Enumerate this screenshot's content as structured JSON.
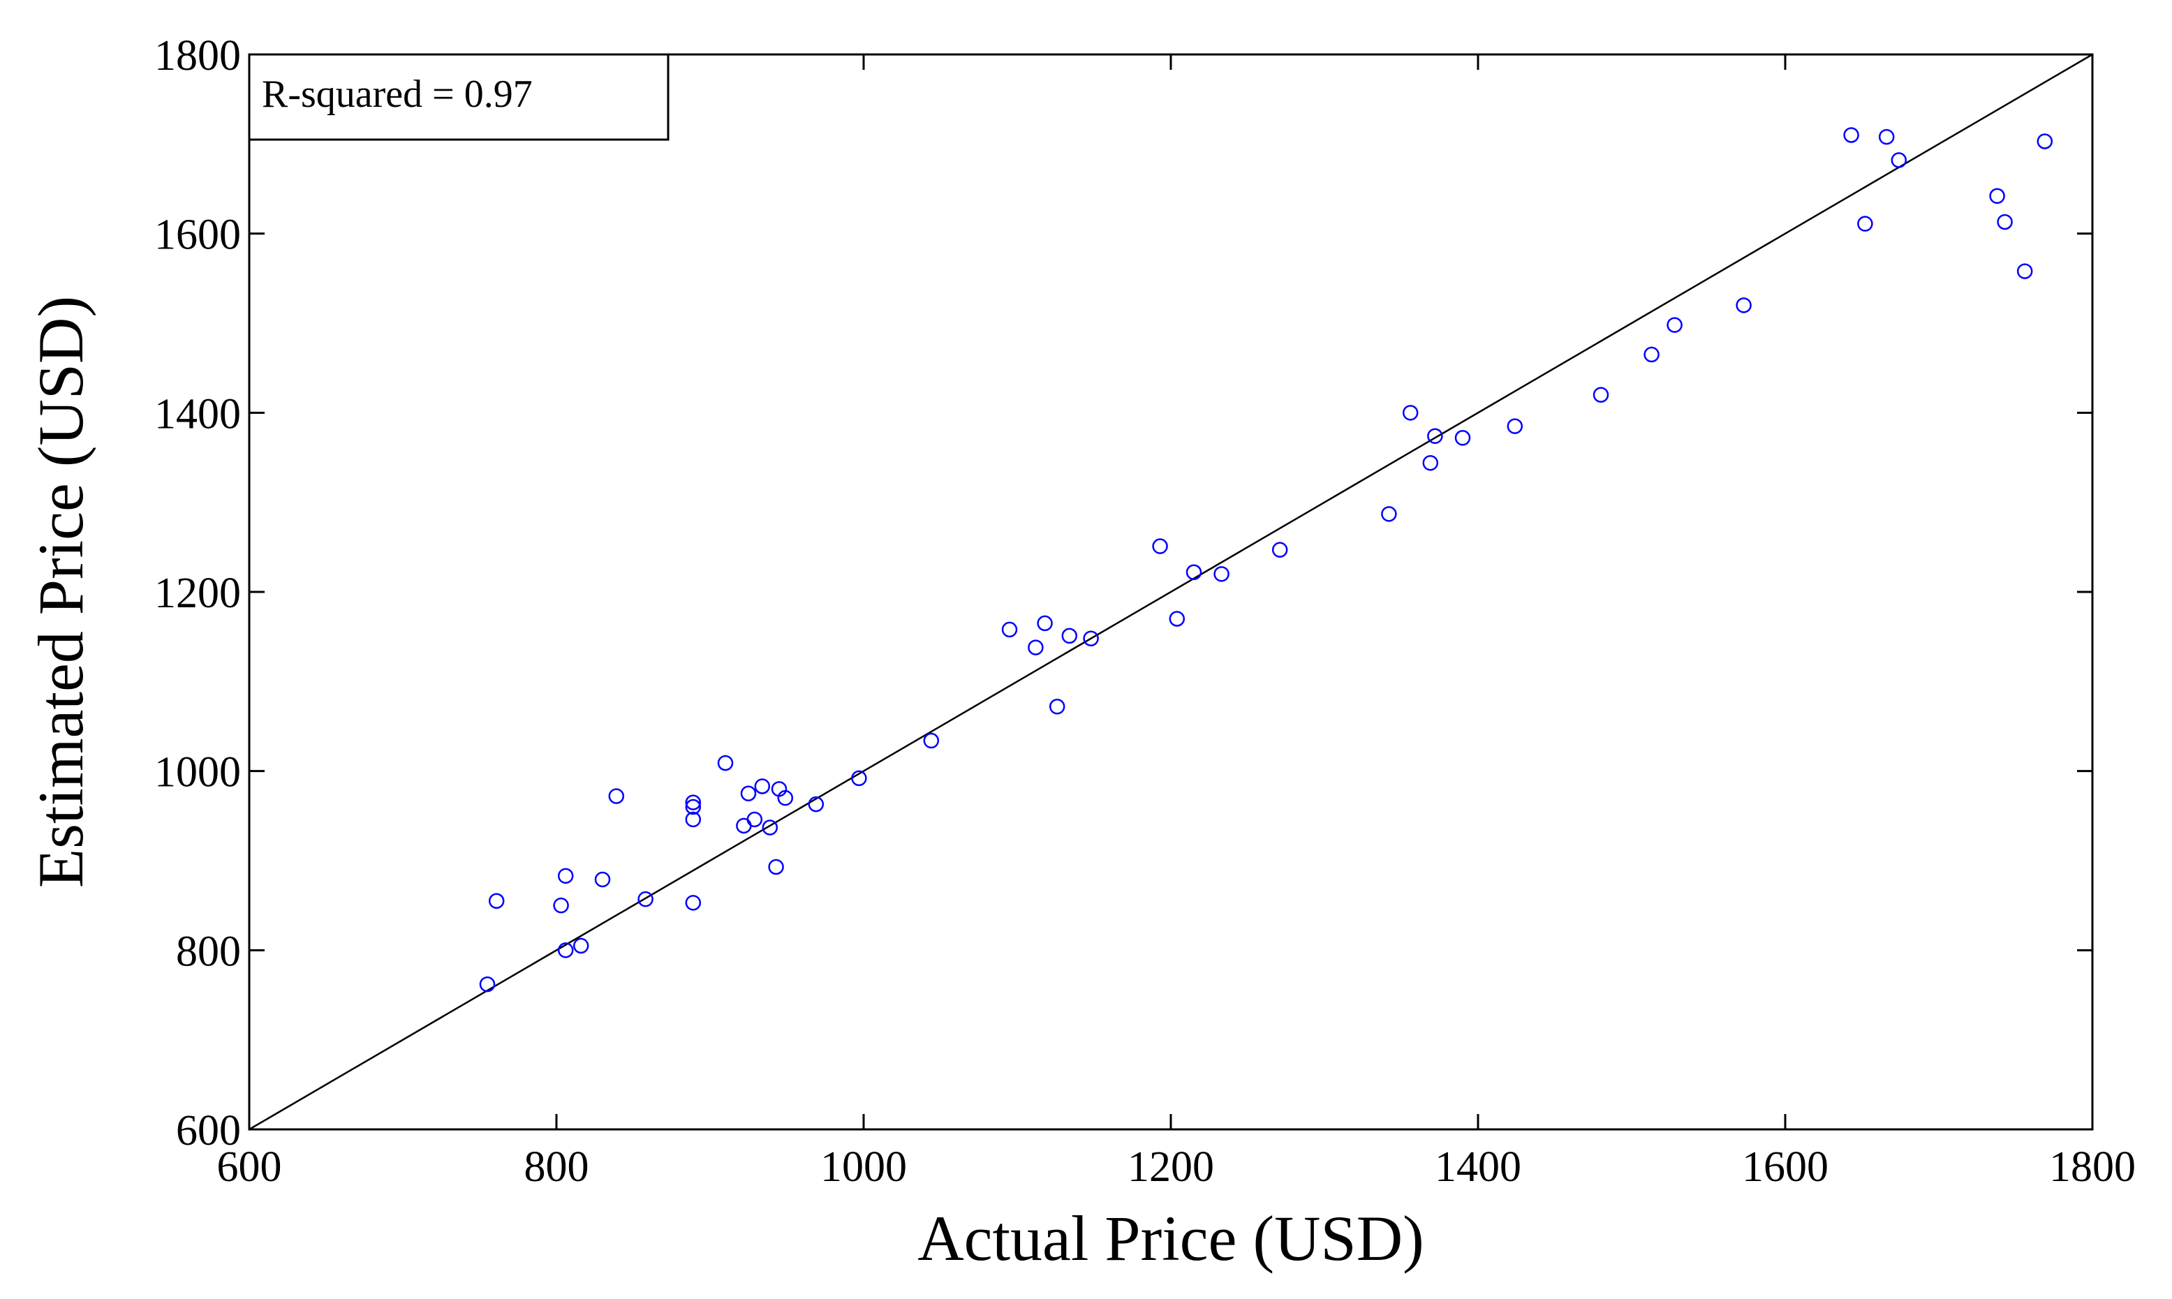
{
  "chart_data": {
    "type": "scatter",
    "xlabel": "Actual Price (USD)",
    "ylabel": "Estimated Price (USD)",
    "xlim": [
      600,
      1800
    ],
    "ylim": [
      600,
      1800
    ],
    "xticks": [
      600,
      800,
      1000,
      1200,
      1400,
      1600,
      1800
    ],
    "yticks": [
      600,
      800,
      1000,
      1200,
      1400,
      1600,
      1800
    ],
    "grid": false,
    "annotation": "R-squared = 0.97",
    "reference_line": {
      "from": [
        600,
        600
      ],
      "to": [
        1800,
        1800
      ]
    },
    "marker_color": "#0000ff",
    "line_color": "#000000",
    "points": [
      {
        "x": 755,
        "y": 762
      },
      {
        "x": 761,
        "y": 855
      },
      {
        "x": 803,
        "y": 850
      },
      {
        "x": 806,
        "y": 883
      },
      {
        "x": 806,
        "y": 800
      },
      {
        "x": 816,
        "y": 805
      },
      {
        "x": 830,
        "y": 879
      },
      {
        "x": 839,
        "y": 972
      },
      {
        "x": 858,
        "y": 857
      },
      {
        "x": 889,
        "y": 965
      },
      {
        "x": 889,
        "y": 960
      },
      {
        "x": 889,
        "y": 946
      },
      {
        "x": 889,
        "y": 853
      },
      {
        "x": 910,
        "y": 1009
      },
      {
        "x": 922,
        "y": 939
      },
      {
        "x": 925,
        "y": 975
      },
      {
        "x": 929,
        "y": 946
      },
      {
        "x": 934,
        "y": 983
      },
      {
        "x": 939,
        "y": 937
      },
      {
        "x": 943,
        "y": 893
      },
      {
        "x": 945,
        "y": 980
      },
      {
        "x": 949,
        "y": 970
      },
      {
        "x": 969,
        "y": 963
      },
      {
        "x": 997,
        "y": 992
      },
      {
        "x": 1044,
        "y": 1034
      },
      {
        "x": 1095,
        "y": 1158
      },
      {
        "x": 1112,
        "y": 1138
      },
      {
        "x": 1118,
        "y": 1165
      },
      {
        "x": 1126,
        "y": 1072
      },
      {
        "x": 1134,
        "y": 1151
      },
      {
        "x": 1148,
        "y": 1148
      },
      {
        "x": 1193,
        "y": 1251
      },
      {
        "x": 1204,
        "y": 1170
      },
      {
        "x": 1215,
        "y": 1222
      },
      {
        "x": 1233,
        "y": 1220
      },
      {
        "x": 1271,
        "y": 1247
      },
      {
        "x": 1342,
        "y": 1287
      },
      {
        "x": 1356,
        "y": 1400
      },
      {
        "x": 1369,
        "y": 1344
      },
      {
        "x": 1372,
        "y": 1374
      },
      {
        "x": 1390,
        "y": 1372
      },
      {
        "x": 1424,
        "y": 1385
      },
      {
        "x": 1480,
        "y": 1420
      },
      {
        "x": 1513,
        "y": 1465
      },
      {
        "x": 1528,
        "y": 1498
      },
      {
        "x": 1573,
        "y": 1520
      },
      {
        "x": 1643,
        "y": 1710
      },
      {
        "x": 1652,
        "y": 1611
      },
      {
        "x": 1666,
        "y": 1708
      },
      {
        "x": 1674,
        "y": 1682
      },
      {
        "x": 1738,
        "y": 1642
      },
      {
        "x": 1743,
        "y": 1613
      },
      {
        "x": 1756,
        "y": 1558
      },
      {
        "x": 1769,
        "y": 1703
      }
    ]
  }
}
